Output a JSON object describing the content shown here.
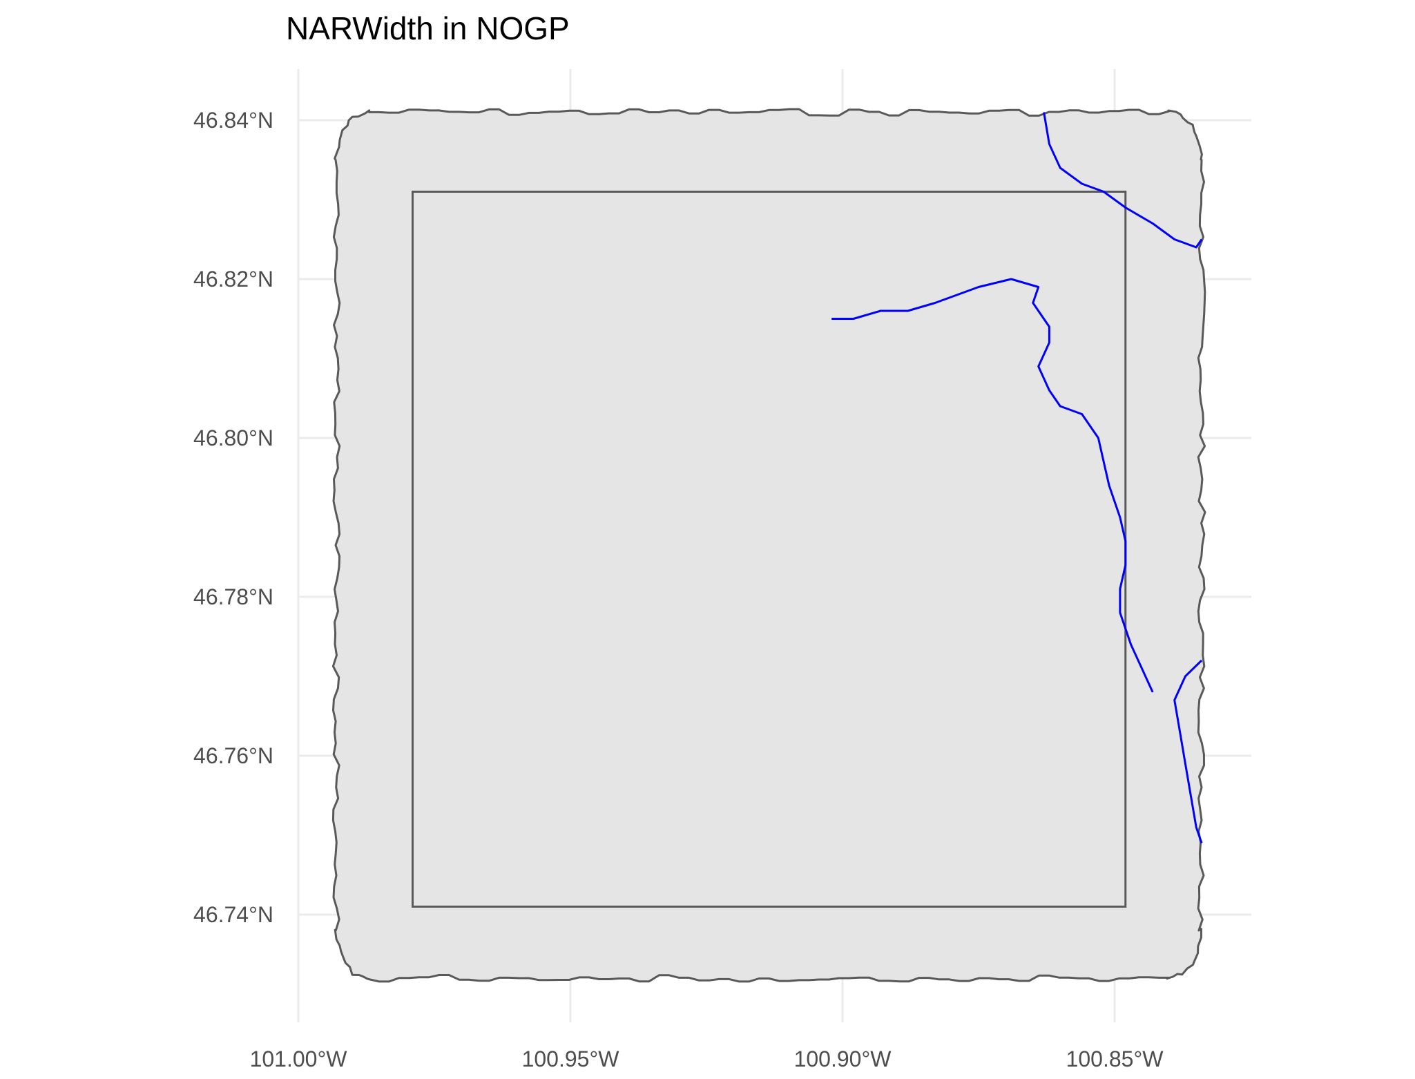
{
  "title": "NARWidth in NOGP",
  "colors": {
    "background": "#ffffff",
    "grid": "#ebebeb",
    "buffer_fill": "#e5e5e5",
    "outline": "#595959",
    "river": "#0000ff",
    "tick_text": "#4d4d4d"
  },
  "axes": {
    "x_ticks": [
      {
        "value": -101.0,
        "label": "101.00°W"
      },
      {
        "value": -100.95,
        "label": "100.95°W"
      },
      {
        "value": -100.9,
        "label": "100.90°W"
      },
      {
        "value": -100.85,
        "label": "100.85°W"
      }
    ],
    "y_ticks": [
      {
        "value": 46.84,
        "label": "46.84°N"
      },
      {
        "value": 46.82,
        "label": "46.82°N"
      },
      {
        "value": 46.8,
        "label": "46.80°N"
      },
      {
        "value": 46.78,
        "label": "46.78°N"
      },
      {
        "value": 46.76,
        "label": "46.76°N"
      },
      {
        "value": 46.74,
        "label": "46.74°N"
      }
    ]
  },
  "layers": {
    "buffer_region": {
      "corners": {
        "west": -100.993,
        "east": -100.834,
        "south": 46.732,
        "north": 46.841
      },
      "corner_rounding_deg": 0.006
    },
    "park_boundary": {
      "west": -100.979,
      "east": -100.848,
      "south": 46.741,
      "north": 46.831
    },
    "rivers": [
      [
        [
          -100.863,
          46.841
        ],
        [
          -100.862,
          46.837
        ],
        [
          -100.86,
          46.834
        ],
        [
          -100.856,
          46.832
        ],
        [
          -100.852,
          46.831
        ],
        [
          -100.848,
          46.829
        ],
        [
          -100.843,
          46.827
        ],
        [
          -100.839,
          46.825
        ],
        [
          -100.835,
          46.824
        ],
        [
          -100.834,
          46.825
        ]
      ],
      [
        [
          -100.902,
          46.815
        ],
        [
          -100.898,
          46.815
        ],
        [
          -100.893,
          46.816
        ],
        [
          -100.888,
          46.816
        ],
        [
          -100.883,
          46.817
        ],
        [
          -100.879,
          46.818
        ],
        [
          -100.875,
          46.819
        ],
        [
          -100.869,
          46.82
        ],
        [
          -100.864,
          46.819
        ],
        [
          -100.865,
          46.817
        ],
        [
          -100.862,
          46.814
        ],
        [
          -100.862,
          46.812
        ],
        [
          -100.864,
          46.809
        ],
        [
          -100.862,
          46.806
        ],
        [
          -100.86,
          46.804
        ],
        [
          -100.856,
          46.803
        ],
        [
          -100.853,
          46.8
        ],
        [
          -100.852,
          46.797
        ],
        [
          -100.851,
          46.794
        ],
        [
          -100.849,
          46.79
        ],
        [
          -100.848,
          46.787
        ],
        [
          -100.848,
          46.784
        ],
        [
          -100.849,
          46.781
        ],
        [
          -100.849,
          46.778
        ],
        [
          -100.847,
          46.774
        ],
        [
          -100.845,
          46.771
        ],
        [
          -100.843,
          46.768
        ]
      ],
      [
        [
          -100.834,
          46.772
        ],
        [
          -100.837,
          46.77
        ],
        [
          -100.839,
          46.767
        ],
        [
          -100.838,
          46.763
        ],
        [
          -100.837,
          46.759
        ],
        [
          -100.836,
          46.755
        ],
        [
          -100.835,
          46.751
        ],
        [
          -100.834,
          46.749
        ]
      ]
    ]
  }
}
